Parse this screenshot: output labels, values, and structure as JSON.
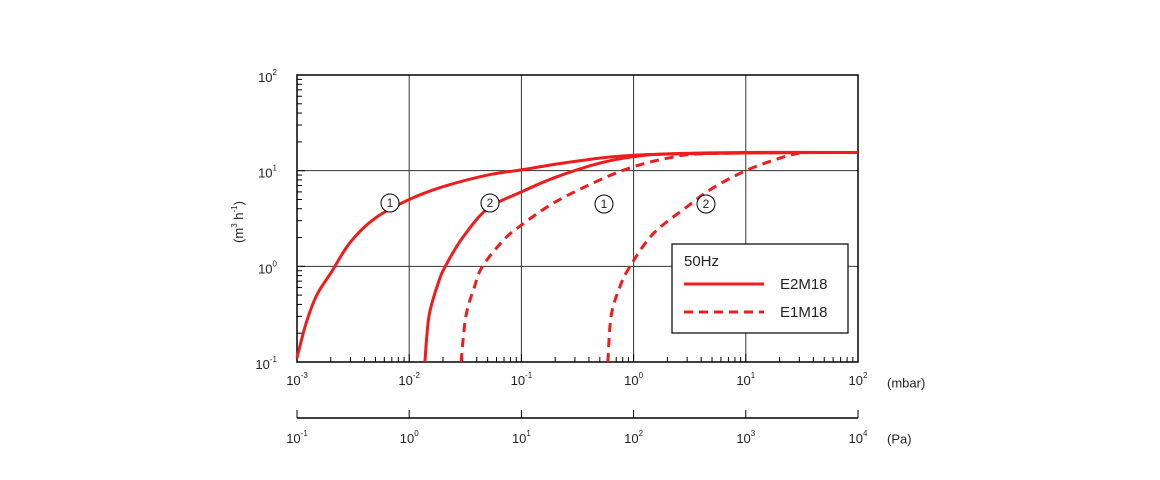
{
  "chart_data": {
    "type": "line",
    "x_scale": "log",
    "y_scale": "log",
    "grid": true,
    "x_unit": "(mbar)",
    "y_label": [
      {
        "text": "(m"
      },
      {
        "text": "3",
        "sup": true
      },
      {
        "text": " h"
      },
      {
        "text": "-1",
        "sup": true
      },
      {
        "text": ")"
      }
    ],
    "xlim": [
      0.001,
      100
    ],
    "xticks": [
      {
        "value": 0.001,
        "label": "10",
        "exponent": "-3"
      },
      {
        "value": 0.01,
        "label": "10",
        "exponent": "-2"
      },
      {
        "value": 0.1,
        "label": "10",
        "exponent": "-1"
      },
      {
        "value": 1,
        "label": "10",
        "exponent": "0"
      },
      {
        "value": 10,
        "label": "10",
        "exponent": "1"
      },
      {
        "value": 100,
        "label": "10",
        "exponent": "2"
      }
    ],
    "ylim": [
      0.1,
      100
    ],
    "yticks": [
      {
        "value": 0.1,
        "label": "10",
        "exponent": "-1"
      },
      {
        "value": 1,
        "label": "10",
        "exponent": "0"
      },
      {
        "value": 10,
        "label": "10",
        "exponent": "1"
      },
      {
        "value": 100,
        "label": "10",
        "exponent": "2"
      }
    ],
    "x2_unit": "(Pa)",
    "x2lim": [
      0.1,
      10000
    ],
    "x2ticks": [
      {
        "value": 0.1,
        "label": "10",
        "exponent": "-1"
      },
      {
        "value": 1,
        "label": "10",
        "exponent": "0"
      },
      {
        "value": 10,
        "label": "10",
        "exponent": "1"
      },
      {
        "value": 100,
        "label": "10",
        "exponent": "2"
      },
      {
        "value": 1000,
        "label": "10",
        "exponent": "3"
      },
      {
        "value": 10000,
        "label": "10",
        "exponent": "4"
      }
    ],
    "legend_title": "50Hz",
    "legend_position": "lower right",
    "series": [
      {
        "name": "E2M18",
        "color": "#ee1c1c",
        "dashed": false,
        "curves": [
          {
            "label": "1",
            "x": [
              0.001,
              0.0012,
              0.0015,
              0.002,
              0.003,
              0.005,
              0.01,
              0.02,
              0.05,
              0.1,
              0.3,
              1,
              10,
              100
            ],
            "values": [
              0.11,
              0.25,
              0.5,
              0.85,
              1.8,
              3.2,
              5,
              6.8,
              9,
              10.2,
              12.5,
              14.5,
              15.3,
              15.5
            ]
          },
          {
            "label": "2",
            "x": [
              0.0138,
              0.015,
              0.018,
              0.021,
              0.03,
              0.05,
              0.1,
              0.2,
              0.5,
              1,
              2,
              10,
              100
            ],
            "values": [
              0.1,
              0.3,
              0.65,
              1,
              2,
              4,
              6,
              8.5,
              12,
              14,
              15,
              15.5,
              15.5
            ]
          }
        ]
      },
      {
        "name": "E1M18",
        "color": "#ee1c1c",
        "dashed": true,
        "curves": [
          {
            "label": "1",
            "x": [
              0.029,
              0.032,
              0.038,
              0.045,
              0.07,
              0.1,
              0.2,
              0.5,
              1,
              2,
              4,
              30
            ],
            "values": [
              0.1,
              0.3,
              0.6,
              1,
              1.9,
              2.7,
              4.7,
              8,
              11,
              13.5,
              15,
              15.5
            ]
          },
          {
            "label": "2",
            "x": [
              0.59,
              0.63,
              0.75,
              0.93,
              1.5,
              3,
              5,
              10,
              20,
              30
            ],
            "values": [
              0.1,
              0.3,
              0.6,
              1,
              2.2,
              4.2,
              6.5,
              10,
              13.5,
              15.3
            ]
          }
        ]
      }
    ]
  }
}
